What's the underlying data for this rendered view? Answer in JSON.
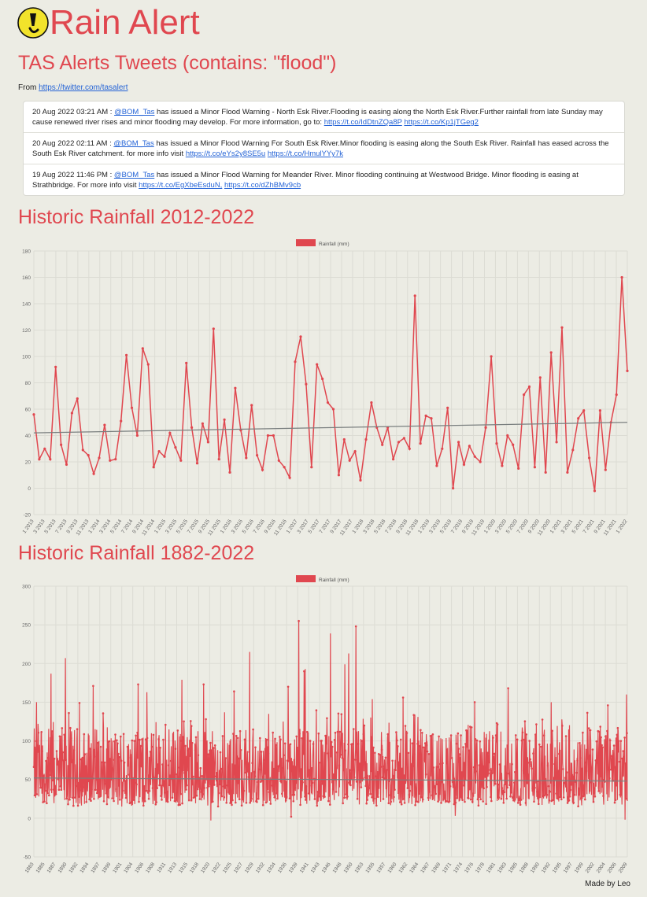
{
  "header": {
    "title": "Rain Alert",
    "logo_icon": "exclamation-icon",
    "logo_color": "#f2e32b"
  },
  "alerts": {
    "title": "TAS Alerts Tweets (contains: \"flood\")",
    "from_label": "From",
    "from_link": "https://twitter.com/tasalert",
    "tweets": [
      {
        "time": "20 Aug 2022 03:21 AM",
        "sep": " : ",
        "mention": "@BOM_Tas",
        "text": " has issued a Minor Flood Warning - North Esk River.Flooding is easing along the North Esk River.Further rainfall from late Sunday may cause renewed river rises and minor flooding may develop. For more information, go to: ",
        "link1": "https://t.co/IdDtnZQa8P",
        "link2": "https://t.co/Kp1jTGeg2"
      },
      {
        "time": "20 Aug 2022 02:11 AM",
        "sep": " : ",
        "mention": "@BOM_Tas",
        "text": " has issued a Minor Flood Warning For South Esk River.Minor flooding is easing along the South Esk River. Rainfall has eased across the South Esk River catchment. for more info visit ",
        "link1": "https://t.co/eYs2y8SE5u",
        "link2": "https://t.co/HmulYYy7k"
      },
      {
        "time": "19 Aug 2022 11:46 PM",
        "sep": " : ",
        "mention": "@BOM_Tas",
        "text": " has issued a Minor Flood Warning for Meander River. Minor flooding continuing at Westwood Bridge. Minor flooding is easing at Strathbridge. For more info visit ",
        "link1": "https://t.co/EgXbeEsduN,",
        "link2": "https://t.co/dZhBMv9cb"
      }
    ]
  },
  "charts": {
    "recent_title": "Historic Rainfall 2012-2022",
    "history_title": "Historic Rainfall 1882-2022"
  },
  "footer": {
    "text": "Made by Leo"
  },
  "colors": {
    "accent": "#e0474f",
    "trend": "#7a7f7f",
    "grid": "#dcdcd4",
    "background": "#ecece4"
  },
  "chart_data": [
    {
      "type": "line",
      "legend": "Rainfall (mm)",
      "legend_position": "top-center",
      "grid": true,
      "ylim": [
        -20,
        180
      ],
      "yticks": [
        -20,
        0,
        20,
        40,
        60,
        80,
        100,
        120,
        140,
        160,
        180
      ],
      "xticklabels": [
        "1 2013",
        "3 2013",
        "5 2013",
        "7 2013",
        "9 2013",
        "11 2013",
        "1 2014",
        "3 2014",
        "5 2014",
        "7 2014",
        "9 2014",
        "11 2014",
        "1 2015",
        "3 2015",
        "5 2015",
        "7 2015",
        "9 2015",
        "11 2015",
        "1 2016",
        "3 2016",
        "5 2016",
        "7 2016",
        "9 2016",
        "11 2016",
        "1 2017",
        "3 2017",
        "5 2017",
        "7 2017",
        "9 2017",
        "11 2017",
        "1 2018",
        "3 2018",
        "5 2018",
        "7 2018",
        "9 2018",
        "11 2018",
        "1 2019",
        "3 2019",
        "5 2019",
        "7 2019",
        "9 2019",
        "11 2019",
        "1 2020",
        "3 2020",
        "5 2020",
        "7 2020",
        "9 2020",
        "11 2020",
        "1 2021",
        "3 2021",
        "5 2021",
        "7 2021",
        "9 2021",
        "11 2021",
        "1 2022"
      ],
      "values": [
        56,
        22,
        30,
        22,
        92,
        33,
        18,
        57,
        68,
        29,
        25,
        11,
        23,
        48,
        21,
        22,
        51,
        101,
        61,
        40,
        106,
        94,
        16,
        28,
        24,
        42,
        31,
        21,
        95,
        46,
        19,
        49,
        35,
        121,
        22,
        52,
        12,
        76,
        44,
        23,
        63,
        25,
        14,
        40,
        40,
        21,
        16,
        8,
        96,
        115,
        79,
        16,
        94,
        83,
        65,
        60,
        10,
        37,
        21,
        28,
        6,
        37,
        65,
        46,
        33,
        46,
        22,
        35,
        38,
        30,
        146,
        34,
        55,
        53,
        17,
        30,
        61,
        0,
        35,
        18,
        32,
        24,
        20,
        46,
        100,
        34,
        17,
        40,
        33,
        15,
        71,
        77,
        16,
        84,
        12,
        103,
        35,
        122,
        12,
        29,
        53,
        59,
        23,
        -2,
        59,
        14,
        50,
        71,
        160,
        89
      ],
      "trend": [
        42,
        50
      ]
    },
    {
      "type": "line",
      "legend": "Rainfall (mm)",
      "legend_position": "top-center",
      "grid": true,
      "ylim": [
        -50,
        300
      ],
      "yticks": [
        -50,
        0,
        50,
        100,
        150,
        200,
        250,
        300
      ],
      "xticklabels": [
        "1883",
        "1885",
        "1887",
        "1890",
        "1892",
        "1894",
        "1897",
        "1899",
        "1901",
        "1904",
        "1906",
        "1908",
        "1911",
        "1913",
        "1915",
        "1918",
        "1920",
        "1922",
        "1925",
        "1927",
        "1929",
        "1932",
        "1934",
        "1936",
        "1939",
        "1941",
        "1943",
        "1946",
        "1948",
        "1950",
        "1953",
        "1955",
        "1957",
        "1960",
        "1962",
        "1964",
        "1967",
        "1969",
        "1971",
        "1974",
        "1976",
        "1978",
        "1981",
        "1983",
        "1985",
        "1988",
        "1990",
        "1992",
        "1995",
        "1997",
        "1999",
        "2002",
        "2004",
        "2006",
        "2009"
      ],
      "series_description_values": "monthly rainfall 1882-2022 (dense)",
      "peaks": [
        [
          1883.1,
          150
        ],
        [
          1883.4,
          122
        ],
        [
          1886.3,
          187
        ],
        [
          1889.4,
          207
        ],
        [
          1890.2,
          136
        ],
        [
          1892.5,
          149
        ],
        [
          1895.5,
          171
        ],
        [
          1905.4,
          173
        ],
        [
          1907.3,
          163
        ],
        [
          1915.0,
          179
        ],
        [
          1919.8,
          173
        ],
        [
          1926.5,
          164
        ],
        [
          1929.9,
          215
        ],
        [
          1938.3,
          170
        ],
        [
          1940.7,
          255
        ],
        [
          1941.8,
          190
        ],
        [
          1942.1,
          193
        ],
        [
          1947.6,
          239
        ],
        [
          1950.8,
          199
        ],
        [
          1951.6,
          213
        ],
        [
          1953.2,
          248
        ],
        [
          1956.8,
          154
        ],
        [
          1963.6,
          156
        ],
        [
          1979.3,
          150
        ],
        [
          1986.6,
          168
        ],
        [
          1996.1,
          150
        ],
        [
          2008.5,
          146
        ],
        [
          2012.6,
          160
        ]
      ],
      "lows": [
        [
          1921.4,
          -3
        ],
        [
          2012.3,
          -2
        ],
        [
          1939.0,
          2
        ],
        [
          1975.0,
          3
        ]
      ],
      "trend": [
        52,
        48
      ]
    }
  ]
}
